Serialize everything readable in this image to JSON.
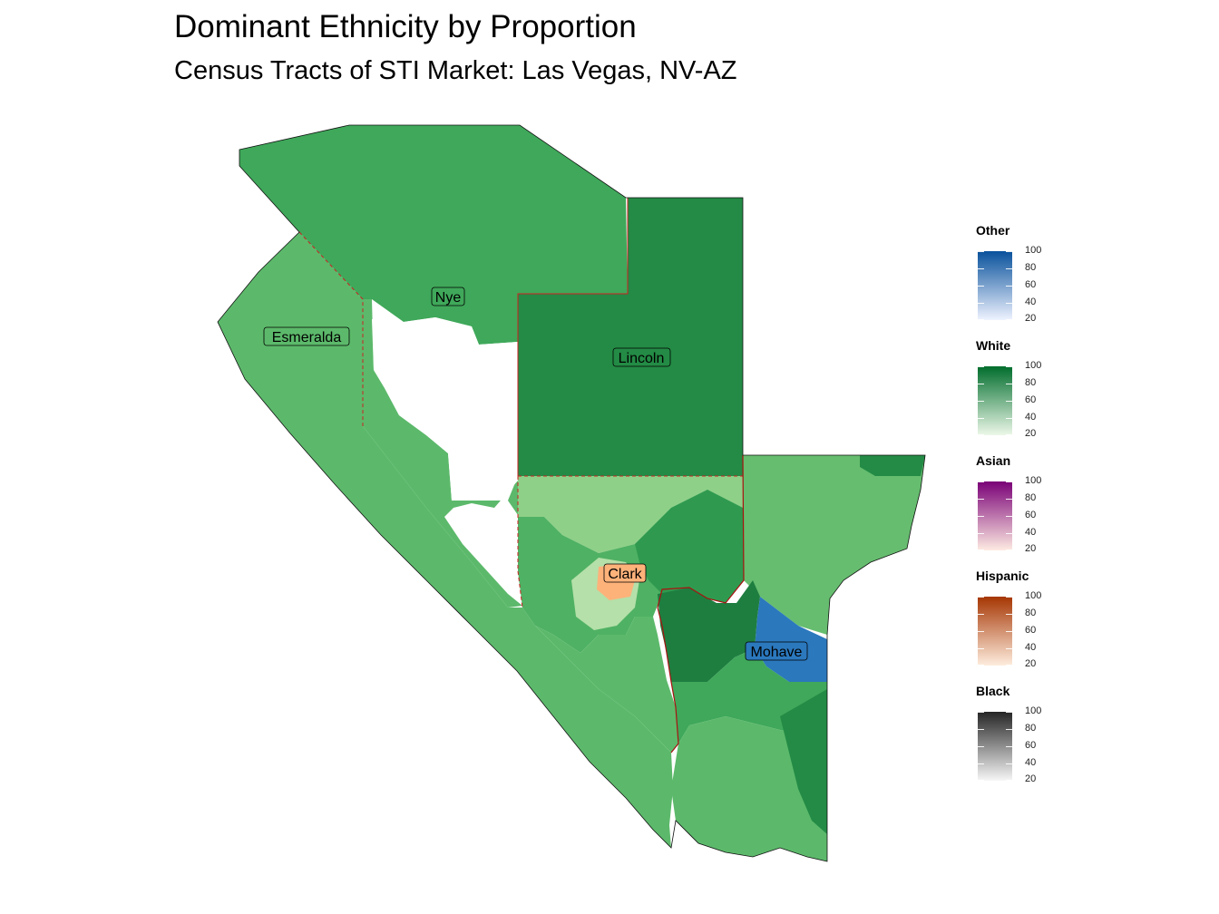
{
  "title": "Dominant Ethnicity by Proportion",
  "subtitle": "Census Tracts of STI Market: Las Vegas, NV-AZ",
  "counties": [
    {
      "name": "Nye",
      "dominant": "White"
    },
    {
      "name": "Esmeralda",
      "dominant": "White"
    },
    {
      "name": "Lincoln",
      "dominant": "White"
    },
    {
      "name": "Clark",
      "dominant": "Hispanic"
    },
    {
      "name": "Mohave",
      "dominant": "Other"
    }
  ],
  "legends": [
    {
      "title": "Other",
      "ticks": [
        "100",
        "80",
        "60",
        "40",
        "20"
      ],
      "color_high": "#08519c",
      "color_low": "#eff3ff"
    },
    {
      "title": "White",
      "ticks": [
        "100",
        "80",
        "60",
        "40",
        "20"
      ],
      "color_high": "#006d2c",
      "color_low": "#edf8e9"
    },
    {
      "title": "Asian",
      "ticks": [
        "100",
        "80",
        "60",
        "40",
        "20"
      ],
      "color_high": "#7a0177",
      "color_low": "#feebe2"
    },
    {
      "title": "Hispanic",
      "ticks": [
        "100",
        "80",
        "60",
        "40",
        "20"
      ],
      "color_high": "#a63603",
      "color_low": "#feedde"
    },
    {
      "title": "Black",
      "ticks": [
        "100",
        "80",
        "60",
        "40",
        "20"
      ],
      "color_high": "#252525",
      "color_low": "#f7f7f7"
    }
  ],
  "colors": {
    "white_mid": "#3fa85a",
    "white_dark": "#238b45",
    "white_light": "#5cb96b",
    "white_pale": "#8fd088",
    "other": "#2b78bd",
    "hispanic": "#fdb27a",
    "county_border": "#cc2222"
  }
}
